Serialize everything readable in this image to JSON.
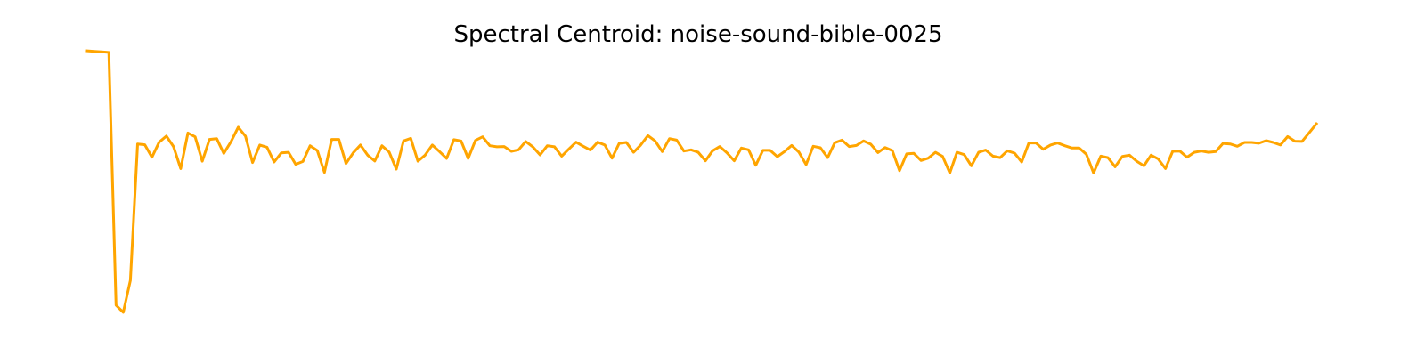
{
  "chart_data": {
    "type": "line",
    "title": "Spectral Centroid: noise-sound-bible-0025",
    "xlabel": "",
    "ylabel": "",
    "axes_visible": false,
    "grid": false,
    "color": "#ffa500",
    "xlim": [
      0,
      170
    ],
    "ylim": [
      -0.06,
      1.06
    ],
    "values": [
      1.0,
      0.998,
      0.996,
      0.994,
      0.0,
      -0.028,
      0.097,
      0.634,
      0.631,
      0.582,
      0.641,
      0.665,
      0.624,
      0.537,
      0.677,
      0.662,
      0.566,
      0.652,
      0.655,
      0.597,
      0.643,
      0.7,
      0.665,
      0.561,
      0.63,
      0.621,
      0.563,
      0.599,
      0.601,
      0.554,
      0.565,
      0.627,
      0.608,
      0.522,
      0.652,
      0.652,
      0.557,
      0.599,
      0.63,
      0.59,
      0.567,
      0.627,
      0.602,
      0.535,
      0.646,
      0.656,
      0.566,
      0.59,
      0.63,
      0.604,
      0.577,
      0.651,
      0.646,
      0.577,
      0.648,
      0.662,
      0.627,
      0.623,
      0.624,
      0.605,
      0.611,
      0.644,
      0.622,
      0.591,
      0.627,
      0.623,
      0.586,
      0.614,
      0.641,
      0.625,
      0.61,
      0.641,
      0.63,
      0.578,
      0.636,
      0.64,
      0.601,
      0.63,
      0.667,
      0.646,
      0.604,
      0.655,
      0.649,
      0.606,
      0.611,
      0.601,
      0.568,
      0.607,
      0.624,
      0.599,
      0.568,
      0.618,
      0.611,
      0.55,
      0.609,
      0.609,
      0.584,
      0.604,
      0.628,
      0.602,
      0.553,
      0.625,
      0.619,
      0.58,
      0.639,
      0.649,
      0.624,
      0.628,
      0.646,
      0.633,
      0.6,
      0.62,
      0.608,
      0.529,
      0.595,
      0.597,
      0.569,
      0.578,
      0.601,
      0.585,
      0.52,
      0.601,
      0.592,
      0.548,
      0.601,
      0.61,
      0.586,
      0.58,
      0.607,
      0.598,
      0.563,
      0.638,
      0.638,
      0.613,
      0.63,
      0.638,
      0.627,
      0.618,
      0.618,
      0.593,
      0.52,
      0.586,
      0.58,
      0.544,
      0.585,
      0.59,
      0.566,
      0.548,
      0.59,
      0.575,
      0.537,
      0.605,
      0.606,
      0.582,
      0.601,
      0.606,
      0.601,
      0.604,
      0.636,
      0.634,
      0.625,
      0.64,
      0.64,
      0.637,
      0.647,
      0.64,
      0.63,
      0.663,
      0.645,
      0.644,
      0.678,
      0.713
    ]
  }
}
